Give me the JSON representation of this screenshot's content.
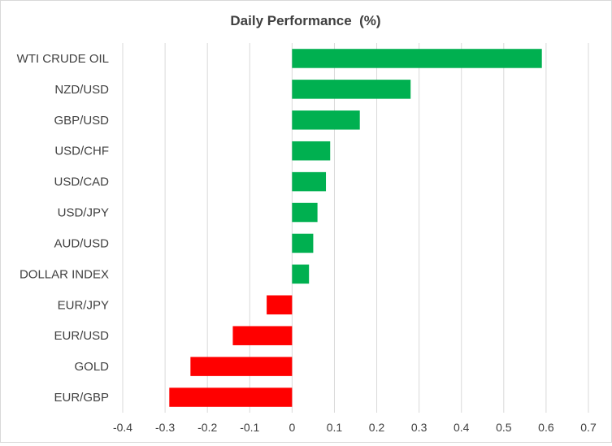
{
  "chart_data": {
    "type": "bar",
    "orientation": "horizontal",
    "title": "Daily Performance  (%)",
    "xlabel": "",
    "ylabel": "",
    "categories": [
      "WTI CRUDE OIL",
      "NZD/USD",
      "GBP/USD",
      "USD/CHF",
      "USD/CAD",
      "USD/JPY",
      "AUD/USD",
      "DOLLAR INDEX",
      "EUR/JPY",
      "EUR/USD",
      "GOLD",
      "EUR/GBP"
    ],
    "values": [
      0.59,
      0.28,
      0.16,
      0.09,
      0.08,
      0.06,
      0.05,
      0.04,
      -0.06,
      -0.14,
      -0.24,
      -0.29
    ],
    "xlim": [
      -0.4,
      0.7
    ],
    "xticks": [
      -0.4,
      -0.3,
      -0.2,
      -0.1,
      0,
      0.1,
      0.2,
      0.3,
      0.4,
      0.5,
      0.6,
      0.7
    ],
    "xtick_labels": [
      "-0.4",
      "-0.3",
      "-0.2",
      "-0.1",
      "0",
      "0.1",
      "0.2",
      "0.3",
      "0.4",
      "0.5",
      "0.6",
      "0.7"
    ],
    "grid": "vertical",
    "legend": "none",
    "colors": {
      "positive": "#00b050",
      "negative": "#ff0000",
      "grid": "#d9d9d9",
      "text": "#404040",
      "title": "#404040"
    }
  }
}
